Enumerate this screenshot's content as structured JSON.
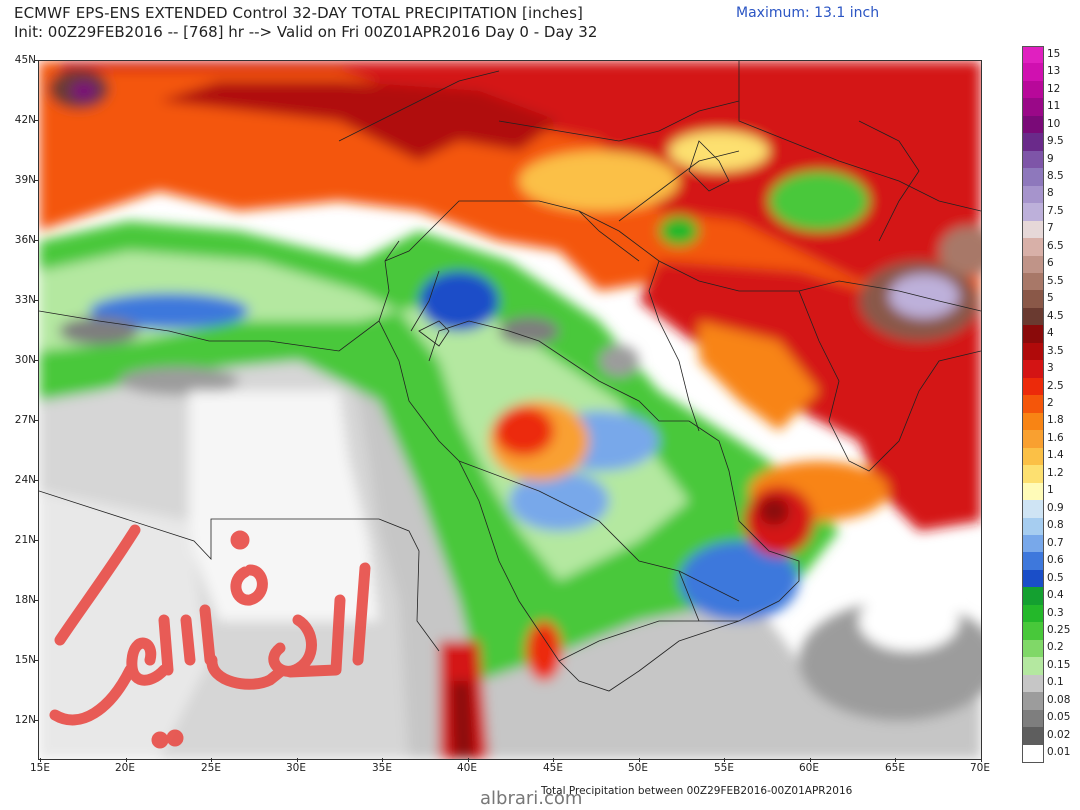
{
  "header": {
    "title_line1": "ECMWF EPS-ENS EXTENDED Control 32-DAY TOTAL PRECIPITATION [inches]",
    "title_line2": "Init: 00Z29FEB2016 -- [768] hr --> Valid on Fri 00Z01APR2016  Day 0 - Day 32",
    "maximum": "Maximum: 13.1 inch"
  },
  "map": {
    "lat_labels": [
      "45N",
      "42N",
      "39N",
      "36N",
      "33N",
      "30N",
      "27N",
      "24N",
      "21N",
      "18N",
      "15N",
      "12N"
    ],
    "lon_labels": [
      "15E",
      "20E",
      "25E",
      "30E",
      "35E",
      "40E",
      "45E",
      "50E",
      "55E",
      "60E",
      "65E",
      "70E"
    ]
  },
  "legend": {
    "labels": [
      "15",
      "13",
      "12",
      "11",
      "10",
      "9.5",
      "9",
      "8.5",
      "8",
      "7.5",
      "7",
      "6.5",
      "6",
      "5.5",
      "5",
      "4.5",
      "4",
      "3.5",
      "3",
      "2.5",
      "2",
      "1.8",
      "1.6",
      "1.4",
      "1.2",
      "1",
      "0.9",
      "0.8",
      "0.7",
      "0.6",
      "0.5",
      "0.4",
      "0.3",
      "0.25",
      "0.2",
      "0.15",
      "0.1",
      "0.08",
      "0.05",
      "0.02",
      "0.01"
    ],
    "colors": [
      "#e020c0",
      "#d010b0",
      "#b8089a",
      "#9a0888",
      "#7a0a78",
      "#6a2a8a",
      "#7e55a8",
      "#8e78bc",
      "#a694cc",
      "#bdb0da",
      "#e6d8d8",
      "#d8b0a8",
      "#c09488",
      "#a87868",
      "#8a5848",
      "#6a3a30",
      "#8a0a0a",
      "#b00a0a",
      "#d41414",
      "#ec2a0a",
      "#f4560a",
      "#f88414",
      "#f9a030",
      "#fbc046",
      "#fde070",
      "#fffbb8",
      "#cfe4f4",
      "#a6cdf0",
      "#78a8ea",
      "#3e78dc",
      "#1a4ec8",
      "#14a030",
      "#24b82a",
      "#48c83a",
      "#80d868",
      "#b4e8a0",
      "#c6c6c6",
      "#9c9c9c",
      "#7e7e7e",
      "#5e5e5e",
      "#ffffff"
    ]
  },
  "footer": "Total Precipitation between 00Z29FEB2016-00Z01APR2016",
  "watermark_site": "albrari.com",
  "signature_text": "اليوسفي"
}
